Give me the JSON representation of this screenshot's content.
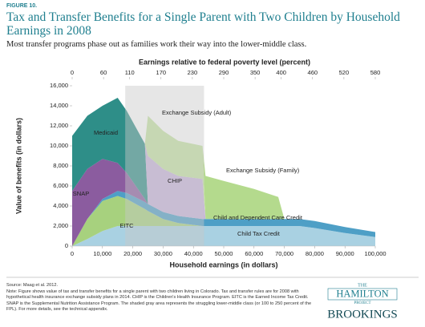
{
  "figure_label": "FIGURE 10.",
  "chart_data": {
    "type": "stacked_area",
    "title": "Tax and Transfer Benefits for a Single Parent with Two Children by Household Earnings in 2008",
    "subtitle": "Most transfer programs phase out as families work their way into the lower-middle class.",
    "x_label": "Household earnings (in dollars)",
    "y_label": "Value of benefits (in dollars)",
    "x2_label": "Earnings relative to federal poverty level (percent)",
    "x": [
      0,
      5000,
      10000,
      15000,
      18000,
      24000,
      25000,
      30000,
      35000,
      43000,
      44000,
      50000,
      60000,
      68000,
      70000,
      75000,
      80000,
      90000,
      100000
    ],
    "series": [
      {
        "name": "Child Tax Credit",
        "color": "#a9d1e2",
        "values": [
          0,
          700,
          1500,
          2000,
          2000,
          2000,
          2000,
          2000,
          2000,
          2000,
          2000,
          2000,
          2000,
          2000,
          2000,
          2000,
          1800,
          1300,
          900
        ]
      },
      {
        "name": "EITC",
        "color": "#a7d17e",
        "values": [
          0,
          2000,
          3000,
          3000,
          2700,
          1700,
          1500,
          700,
          300,
          0,
          0,
          0,
          0,
          0,
          0,
          0,
          0,
          0,
          0
        ]
      },
      {
        "name": "Child and Dependent Care Credit",
        "color": "#4e9fc6",
        "values": [
          0,
          0,
          200,
          500,
          600,
          700,
          700,
          700,
          700,
          700,
          700,
          700,
          700,
          700,
          700,
          700,
          700,
          600,
          500
        ]
      },
      {
        "name": "SNAP",
        "color": "#8b5c9f",
        "values": [
          5500,
          5000,
          4000,
          2800,
          2000,
          300,
          0,
          0,
          0,
          0,
          0,
          0,
          0,
          0,
          0,
          0,
          0,
          0,
          0
        ]
      },
      {
        "name": "Medicaid",
        "color": "#2e8e88",
        "values": [
          5500,
          5300,
          5300,
          6500,
          6200,
          5500,
          0,
          0,
          0,
          0,
          0,
          0,
          0,
          0,
          0,
          0,
          0,
          0,
          0
        ]
      },
      {
        "name": "CHIP",
        "color": "#c8b4dc",
        "values": [
          0,
          0,
          0,
          0,
          0,
          0,
          4800,
          4300,
          4000,
          4000,
          0,
          0,
          0,
          0,
          0,
          0,
          0,
          0,
          0
        ]
      },
      {
        "name": "Exchange Subsidy (Adult)",
        "color": "#c5e3a2",
        "values": [
          0,
          0,
          0,
          0,
          0,
          0,
          4000,
          3800,
          3500,
          3300,
          0,
          0,
          0,
          0,
          0,
          0,
          0,
          0,
          0
        ]
      },
      {
        "name": "Exchange Subsidy (Family)",
        "color": "#b4da8d",
        "values": [
          0,
          0,
          0,
          0,
          0,
          0,
          0,
          0,
          0,
          0,
          4300,
          3800,
          3000,
          2200,
          0,
          0,
          0,
          0,
          0
        ]
      }
    ],
    "shaded_range": [
      17500,
      43500
    ],
    "xlim": [
      0,
      100000
    ],
    "xticks": [
      0,
      {
        "value": 10000,
        "label": "10,000"
      },
      {
        "value": 20000,
        "label": "20,000"
      },
      {
        "value": 30000,
        "label": "30,000"
      },
      {
        "value": 40000,
        "label": "40,000"
      },
      {
        "value": 50000,
        "label": "50,000"
      },
      {
        "value": 60000,
        "label": "60,000"
      },
      {
        "value": 70000,
        "label": "70,000"
      },
      {
        "value": 80000,
        "label": "80,000"
      },
      {
        "value": 90000,
        "label": "90,000"
      },
      {
        "value": 100000,
        "label": "100,000"
      }
    ],
    "ylim": [
      0,
      16000
    ],
    "yticks": [
      0,
      {
        "value": 2000,
        "label": "2,000"
      },
      {
        "value": 4000,
        "label": "4,000"
      },
      {
        "value": 6000,
        "label": "6,000"
      },
      {
        "value": 8000,
        "label": "8,000"
      },
      {
        "value": 10000,
        "label": "10,000"
      },
      {
        "value": 12000,
        "label": "12,000"
      },
      {
        "value": 14000,
        "label": "14,000"
      },
      {
        "value": 16000,
        "label": "16,000"
      }
    ],
    "x2lim": [
      0,
      580
    ],
    "x2ticks": [
      0,
      60,
      110,
      170,
      230,
      290,
      350,
      400,
      460,
      520,
      580
    ]
  },
  "notes": {
    "source": "Source: Maag et al. 2012.",
    "note": "Note: Figure shows value of tax and transfer benefits for a single parent with two children living in Colorado. Tax and transfer rules are for 2008 with hypothetical health insurance exchange subsidy plans in 2014. CHIP is the Children's Health Insurance Program. EITC is the Earned Income Tax Credit. SNAP is the Supplemental Nutrition Assistance Program. The shaded gray area represents the struggling lower-middle class (or 100 to 250 percent of the FPL). For more details, see the technical appendix."
  },
  "logo": {
    "the": "THE",
    "hamilton": "HAMILTON",
    "project": "PROJECT",
    "brookings": "BROOKINGS"
  }
}
